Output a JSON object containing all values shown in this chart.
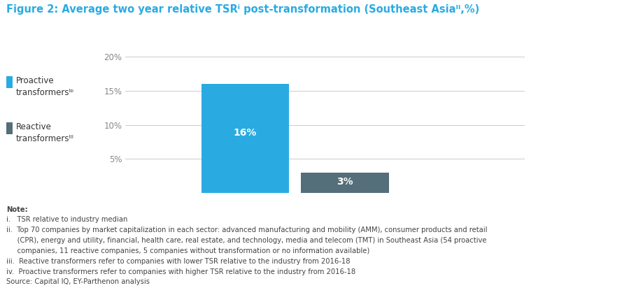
{
  "title": "Figure 2: Average two year relative TSRⁱ post-transformation (Southeast Asiaᴵᴵ,%)",
  "values": [
    16,
    3
  ],
  "bar_colors": [
    "#29ABE2",
    "#546E7A"
  ],
  "bar_width": 0.22,
  "bar_positions": [
    0.3,
    0.55
  ],
  "ylim": [
    0,
    22
  ],
  "yticks": [
    5,
    10,
    15,
    20
  ],
  "ytick_labels": [
    "5%",
    "10%",
    "15%",
    "20%"
  ],
  "value_labels": [
    "16%",
    "3%"
  ],
  "background_color": "#FFFFFF",
  "title_color": "#29ABE2",
  "title_fontsize": 10.5,
  "tick_label_fontsize": 8.5,
  "value_fontsize": 10,
  "grid_color": "#CCCCCC",
  "axis_label_color": "#888888",
  "note_fontsize": 7.2,
  "legend_colors": [
    "#29ABE2",
    "#546E7A"
  ],
  "note_lines": [
    "Note:",
    "i.   TSR relative to industry median",
    "ii.  Top 70 companies by market capitalization in each sector: advanced manufacturing and mobility (AMM), consumer products and retail",
    "     (CPR), energy and utility, financial, health care, real estate, and technology, media and telecom (TMT) in Southeast Asia (54 proactive",
    "     companies, 11 reactive companies, 5 companies without transformation or no information available)",
    "iii.  Reactive transformers refer to companies with lower TSR relative to the industry from 2016-18",
    "iv.  Proactive transformers refer to companies with higher TSR relative to the industry from 2016-18",
    "Source: Capital IQ, EY-Parthenon analysis"
  ]
}
